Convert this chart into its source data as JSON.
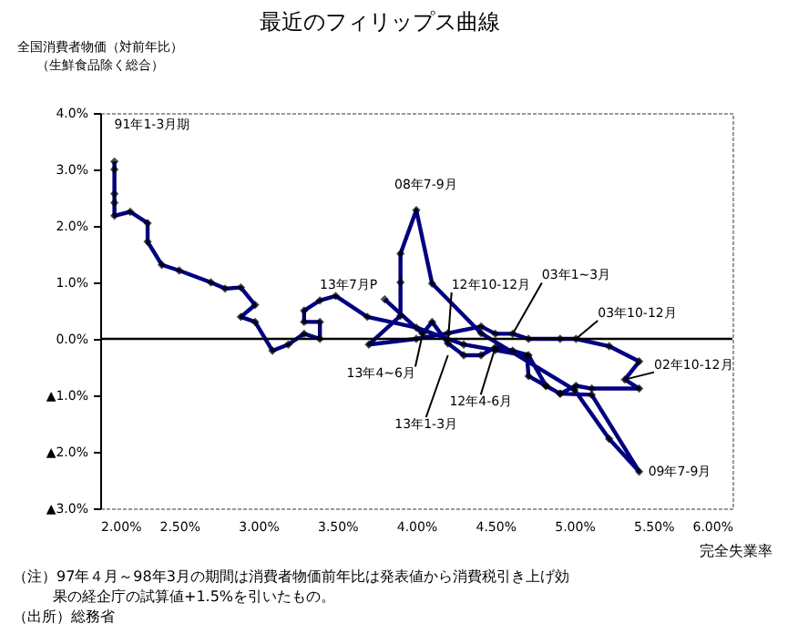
{
  "chart_data": {
    "type": "line",
    "title": "最近のフィリップス曲線",
    "ylabel": "全国消費者物価（対前年比）（生鮮食品除く総合）",
    "xlabel": "完全失業率",
    "x": [
      2.09,
      2.09,
      2.09,
      2.09,
      2.09,
      2.19,
      2.3,
      2.3,
      2.39,
      2.5,
      2.7,
      2.79,
      2.89,
      2.98,
      2.89,
      2.98,
      3.09,
      3.19,
      3.29,
      3.39,
      3.39,
      3.29,
      3.29,
      3.39,
      3.49,
      3.69,
      4.0,
      4.3,
      4.5,
      4.7,
      4.71,
      4.82,
      4.91,
      5.01,
      5.11,
      5.41,
      5.32,
      5.41,
      5.22,
      5.01,
      4.91,
      4.71,
      4.61,
      4.5,
      4.41,
      4.2,
      4.0,
      3.7,
      3.9,
      3.9,
      3.9,
      4.0,
      4.1,
      4.41,
      5.0,
      5.22,
      5.41,
      5.11,
      4.91,
      4.82,
      4.71,
      4.61,
      4.5,
      4.41,
      4.3,
      4.2,
      4.1,
      4.04,
      3.8
    ],
    "series": [
      {
        "color": "#000080",
        "values": [
          3.14,
          3.0,
          2.57,
          2.41,
          2.18,
          2.25,
          2.05,
          1.72,
          1.31,
          1.21,
          1.0,
          0.89,
          0.91,
          0.6,
          0.39,
          0.3,
          -0.21,
          -0.1,
          0.09,
          0.0,
          0.3,
          0.3,
          0.5,
          0.68,
          0.76,
          0.39,
          0.2,
          -0.1,
          -0.2,
          -0.3,
          -0.66,
          -0.83,
          -0.97,
          -0.83,
          -0.88,
          -0.88,
          -0.72,
          -0.4,
          -0.13,
          0.0,
          0.0,
          0.0,
          0.09,
          0.09,
          0.22,
          0.1,
          0.0,
          -0.1,
          0.41,
          1.0,
          1.51,
          2.28,
          0.98,
          0.1,
          -0.9,
          -1.77,
          -2.35,
          -0.99,
          -0.97,
          -0.83,
          -0.29,
          -0.21,
          -0.15,
          -0.29,
          -0.29,
          -0.08,
          0.3,
          0.09,
          0.7
        ]
      }
    ],
    "xlim": [
      2.0,
      6.0
    ],
    "xticks": [
      {
        "value": 2.0,
        "label": "2.00%"
      },
      {
        "value": 2.5,
        "label": "2.50%"
      },
      {
        "value": 3.0,
        "label": "3.00%"
      },
      {
        "value": 3.5,
        "label": "3.50%"
      },
      {
        "value": 4.0,
        "label": "4.00%"
      },
      {
        "value": 4.5,
        "label": "4.50%"
      },
      {
        "value": 5.0,
        "label": "5.00%"
      },
      {
        "value": 5.5,
        "label": "5.50%"
      },
      {
        "value": 6.0,
        "label": "6.00%"
      }
    ],
    "ylim": [
      -3.0,
      4.0
    ],
    "yticks": [
      {
        "value": -3.0,
        "label": "▲3.0%"
      },
      {
        "value": -2.0,
        "label": "▲2.0%"
      },
      {
        "value": -1.0,
        "label": "▲1.0%"
      },
      {
        "value": 0.0,
        "label": "0.0%"
      },
      {
        "value": 1.0,
        "label": "1.0%"
      },
      {
        "value": 2.0,
        "label": "2.0%"
      },
      {
        "value": 3.0,
        "label": "3.0%"
      },
      {
        "value": 4.0,
        "label": "4.0%"
      }
    ],
    "ref_lines": [
      {
        "axis": "y",
        "value": 0.0,
        "color": "#000000"
      }
    ],
    "marker": "diamond",
    "annotations": [
      {
        "text": "91年1-3月期",
        "x": 2.09,
        "y": 3.14
      },
      {
        "text": "08年7-9月",
        "x": 4.0,
        "y": 2.28
      },
      {
        "text": "13年7月P",
        "x": 3.8,
        "y": 0.7
      },
      {
        "text": "12年10-12月",
        "x": 4.2,
        "y": -0.08
      },
      {
        "text": "03年1~3月",
        "x": 4.61,
        "y": 0.09
      },
      {
        "text": "03年10-12月",
        "x": 5.01,
        "y": 0.0
      },
      {
        "text": "13年4~6月",
        "x": 4.04,
        "y": 0.09
      },
      {
        "text": "12年4-6月",
        "x": 4.5,
        "y": -0.15
      },
      {
        "text": "13年1-3月",
        "x": 4.2,
        "y": -0.29
      },
      {
        "text": "02年10-12月",
        "x": 5.32,
        "y": -0.72
      },
      {
        "text": "09年7-9月",
        "x": 5.41,
        "y": -2.35
      },
      "（注）97年４月～98年3月の期間は消費者物価前年比は発表値から消費税引き上げ効果の経企庁の試算値+1.5%を引いたもの。",
      "（出所）総務省"
    ]
  }
}
